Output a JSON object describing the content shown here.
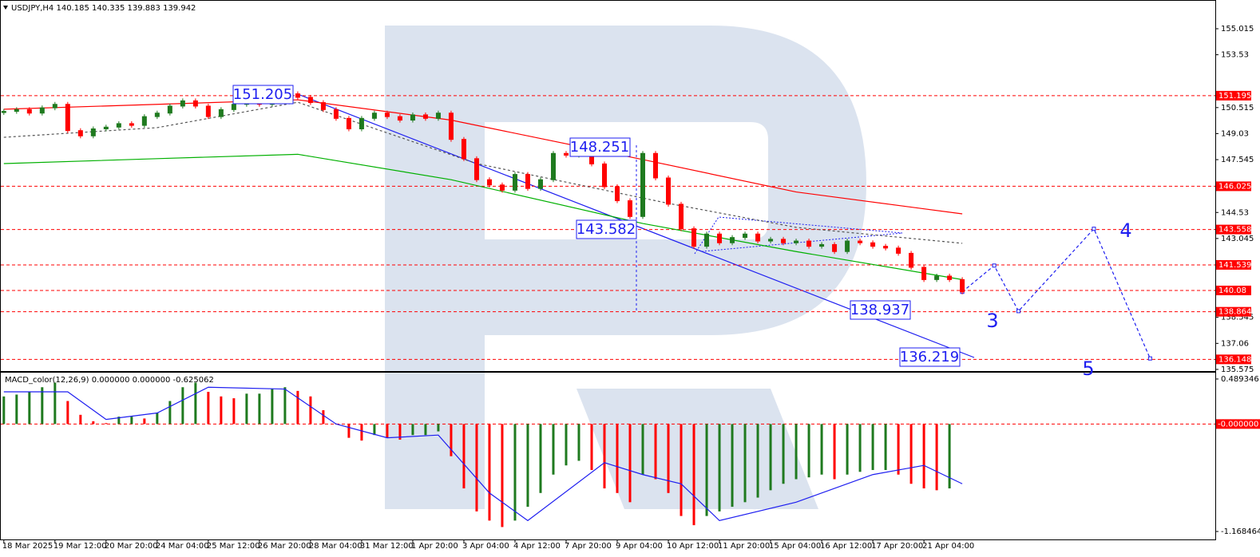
{
  "chart_data": [
    {
      "type": "candlestick",
      "title": "USDJPY,H4  140.185 140.335 139.883 139.942",
      "xlim": [
        -0.3,
        94.8
      ],
      "xticks": [
        {
          "value": 0,
          "label": "18 Mar 2025"
        },
        {
          "value": 4,
          "label": "19 Mar 12:00"
        },
        {
          "value": 8,
          "label": "20 Mar 20:00"
        },
        {
          "value": 12,
          "label": "24 Mar 04:00"
        },
        {
          "value": 16,
          "label": "25 Mar 12:00"
        },
        {
          "value": 20,
          "label": "26 Mar 20:00"
        },
        {
          "value": 24,
          "label": "28 Mar 04:00"
        },
        {
          "value": 28,
          "label": "31 Mar 12:00"
        },
        {
          "value": 32,
          "label": "1 Apr 20:00"
        },
        {
          "value": 36,
          "label": "3 Apr 04:00"
        },
        {
          "value": 40,
          "label": "4 Apr 12:00"
        },
        {
          "value": 44,
          "label": "7 Apr 20:00"
        },
        {
          "value": 48,
          "label": "9 Apr 04:00"
        },
        {
          "value": 52,
          "label": "10 Apr 12:00"
        },
        {
          "value": 56,
          "label": "11 Apr 20:00"
        },
        {
          "value": 60,
          "label": "15 Apr 04:00"
        },
        {
          "value": 64,
          "label": "16 Apr 12:00"
        },
        {
          "value": 68,
          "label": "17 Apr 20:00"
        },
        {
          "value": 72,
          "label": "21 Apr 04:00"
        }
      ],
      "ylim": [
        135.48,
        156.654
      ],
      "yticks": [
        155.015,
        153.53,
        150.515,
        149.03,
        147.545,
        144.53,
        143.045,
        138.545,
        137.06,
        135.575
      ],
      "close": [
        150.3,
        150.4,
        150.2,
        150.5,
        150.7,
        149.2,
        148.9,
        149.3,
        149.4,
        149.6,
        149.5,
        150.0,
        150.2,
        150.6,
        150.9,
        150.6,
        150.0,
        150.4,
        150.7,
        150.8,
        150.7,
        151.0,
        151.3,
        151.1,
        150.8,
        150.4,
        149.9,
        149.3,
        149.9,
        150.2,
        150.0,
        149.8,
        150.1,
        149.9,
        150.2,
        148.7,
        147.6,
        146.4,
        146.1,
        145.8,
        146.7,
        145.9,
        146.4,
        147.9,
        147.8,
        148.0,
        147.3,
        146.0,
        145.2,
        144.3,
        147.9,
        146.5,
        145.0,
        143.6,
        142.6,
        143.3,
        142.8,
        143.1,
        143.3,
        142.9,
        143.0,
        142.8,
        142.9,
        142.6,
        142.7,
        142.3,
        142.9,
        142.8,
        142.6,
        142.5,
        142.2,
        141.4,
        140.7,
        140.9,
        140.7,
        140.0
      ],
      "up_color": "#1f7a1f",
      "down_color": "#ff0000",
      "lines": [
        {
          "color": "#ff0000",
          "x": [
            0,
            23,
            35,
            50,
            62,
            75
          ],
          "values": [
            150.42,
            150.96,
            149.8,
            147.55,
            145.7,
            144.45
          ]
        },
        {
          "color": "#00b000",
          "x": [
            0,
            12,
            23,
            35,
            50,
            62,
            75
          ],
          "values": [
            147.32,
            147.6,
            147.85,
            146.4,
            143.9,
            142.3,
            140.7
          ]
        },
        {
          "color": "#555555",
          "dash": true,
          "x": [
            0,
            12,
            23,
            37,
            52,
            62,
            75
          ],
          "values": [
            148.82,
            149.37,
            150.82,
            147.32,
            145.05,
            143.68,
            142.77
          ]
        }
      ],
      "levels": [
        151.195,
        146.025,
        143.558,
        141.539,
        140.08,
        138.864,
        136.148
      ],
      "level_color": "#ff0000",
      "forecast": {
        "color": "#1e1ef0",
        "x": [
          75,
          77.5,
          79.4,
          85.3,
          89.7
        ],
        "values": [
          140.0,
          141.5,
          138.9,
          143.6,
          136.2
        ]
      },
      "price_labels": [
        151.205,
        148.251,
        143.582,
        138.937,
        136.219
      ],
      "wave_labels": [
        "3",
        "4",
        "5"
      ]
    },
    {
      "type": "bar",
      "title": "MACD_color(12,26,9) 0.000000 0.000000 -0.625062",
      "ylim": [
        -1.255,
        0.567
      ],
      "yticks": [
        0.489346,
        {
          "value": 0,
          "label": "-0.000000"
        },
        -1.168464
      ],
      "up_color": "#1f7a1f",
      "down_color": "#ff0000",
      "zero_color": "#ff0000",
      "values": [
        0.3,
        0.32,
        0.35,
        0.4,
        0.45,
        0.25,
        0.1,
        0.03,
        0.01,
        0.08,
        0.08,
        0.06,
        0.12,
        0.25,
        0.4,
        0.45,
        0.35,
        0.3,
        0.28,
        0.33,
        0.33,
        0.38,
        0.4,
        0.36,
        0.3,
        0.15,
        0.0,
        -0.15,
        -0.18,
        -0.12,
        -0.15,
        -0.17,
        -0.12,
        -0.12,
        -0.08,
        -0.35,
        -0.7,
        -0.95,
        -1.05,
        -1.12,
        -1.05,
        -0.9,
        -0.75,
        -0.55,
        -0.45,
        -0.4,
        -0.5,
        -0.7,
        -0.75,
        -0.85,
        -0.55,
        -0.6,
        -0.75,
        -1.0,
        -1.1,
        -1.0,
        -0.95,
        -0.9,
        -0.85,
        -0.8,
        -0.72,
        -0.65,
        -0.6,
        -0.58,
        -0.55,
        -0.6,
        -0.55,
        -0.52,
        -0.5,
        -0.5,
        -0.55,
        -0.65,
        -0.7,
        -0.72,
        -0.7
      ],
      "signal": {
        "color": "#1e1ef0",
        "x": [
          0,
          5,
          8,
          12,
          16,
          22,
          26,
          30,
          34,
          38,
          41,
          47,
          50,
          53,
          56,
          62,
          68,
          72,
          75
        ],
        "values": [
          0.35,
          0.35,
          0.05,
          0.12,
          0.4,
          0.38,
          0.0,
          -0.15,
          -0.12,
          -0.75,
          -1.05,
          -0.42,
          -0.55,
          -0.65,
          -1.05,
          -0.85,
          -0.55,
          -0.45,
          -0.65
        ]
      }
    }
  ]
}
